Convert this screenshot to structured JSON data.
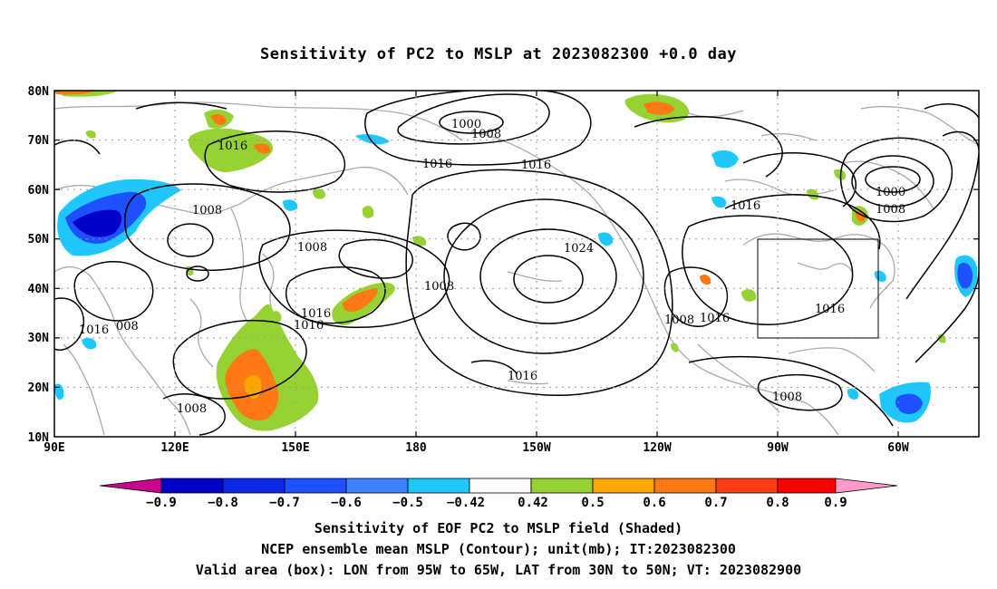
{
  "title": "Sensitivity of PC2 to MSLP at 2023082300 +0.0 day",
  "footer": {
    "line1": "Sensitivity of EOF PC2 to MSLP field (Shaded)",
    "line2": "NCEP ensemble mean MSLP (Contour); unit(mb); IT:2023082300",
    "line3": "Valid area (box): LON from 95W to 65W, LAT from 30N to 50N; VT: 2023082900"
  },
  "axes": {
    "lat_labels": [
      "80N",
      "70N",
      "60N",
      "50N",
      "40N",
      "30N",
      "20N",
      "10N"
    ],
    "lon_labels": [
      "90E",
      "120E",
      "150E",
      "180",
      "150W",
      "120W",
      "90W",
      "60W"
    ]
  },
  "colorbar": {
    "labels": [
      "−0.9",
      "−0.8",
      "−0.7",
      "−0.6",
      "−0.5",
      "−0.42",
      "0.42",
      "0.5",
      "0.6",
      "0.7",
      "0.8",
      "0.9"
    ],
    "colors": [
      "#c8008c",
      "#0000c8",
      "#0a28e6",
      "#1e50ff",
      "#3c82ff",
      "#1ec8ff",
      "#ffffff",
      "#96d232",
      "#ffa500",
      "#ff7814",
      "#ff3c14",
      "#ff0000",
      "#ff9bc8"
    ]
  },
  "contour_labels": [
    {
      "text": "1000"
    },
    {
      "text": "1008"
    },
    {
      "text": "1016"
    },
    {
      "text": "1016"
    },
    {
      "text": "1016"
    },
    {
      "text": "1008"
    },
    {
      "text": "1008"
    },
    {
      "text": "1024"
    },
    {
      "text": "1008"
    },
    {
      "text": "1016"
    },
    {
      "text": "1016"
    },
    {
      "text": "1016"
    },
    {
      "text": "008"
    },
    {
      "text": "1008"
    },
    {
      "text": "1016"
    },
    {
      "text": "1016"
    },
    {
      "text": "1000"
    },
    {
      "text": "1008"
    },
    {
      "text": "1016"
    },
    {
      "text": "1008"
    },
    {
      "text": "1008"
    }
  ],
  "valid_box": {
    "lon_range": "95W-65W",
    "lat_range": "30N-50N"
  }
}
